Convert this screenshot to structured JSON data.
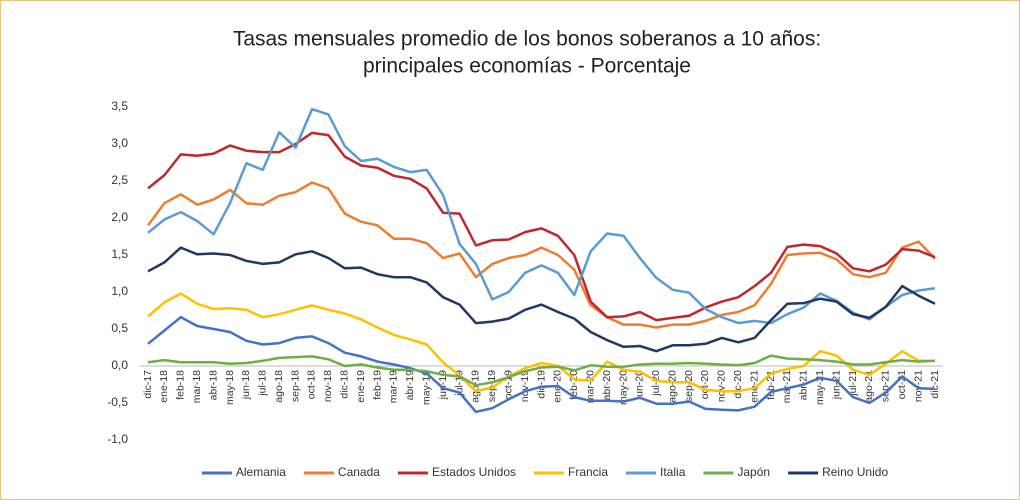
{
  "chart_data": {
    "type": "line",
    "title": [
      "Tasas mensuales promedio de los bonos soberanos a 10 años:",
      "principales economías - Porcentaje"
    ],
    "categories": [
      "dic-17",
      "ene-18",
      "feb-18",
      "mar-18",
      "abr-18",
      "may-18",
      "jun-18",
      "jul-18",
      "ago-18",
      "sep-18",
      "oct-18",
      "nov-18",
      "dic-18",
      "ene-19",
      "feb-19",
      "mar-19",
      "abr-19",
      "may-19",
      "jun-19",
      "jul-19",
      "ago-19",
      "sep-19",
      "oct-19",
      "nov-19",
      "dic-19",
      "ene-20",
      "feb-20",
      "mar-20",
      "abr-20",
      "may-20",
      "jun-20",
      "jul-20",
      "ago-20",
      "sep-20",
      "oct-20",
      "nov-20",
      "dic-20",
      "ene-21",
      "feb-21",
      "mar-21",
      "abr-21",
      "may-21",
      "jun-21",
      "jul-21",
      "ago-21",
      "sep-21",
      "oct-21",
      "nov-21",
      "dic-21"
    ],
    "series": [
      {
        "name": "Alemania",
        "color": "#4472c4",
        "values": [
          0.3,
          0.48,
          0.66,
          0.54,
          0.5,
          0.46,
          0.34,
          0.29,
          0.31,
          0.38,
          0.4,
          0.31,
          0.18,
          0.13,
          0.06,
          0.02,
          -0.03,
          -0.1,
          -0.3,
          -0.36,
          -0.62,
          -0.57,
          -0.45,
          -0.34,
          -0.28,
          -0.27,
          -0.42,
          -0.47,
          -0.47,
          -0.48,
          -0.43,
          -0.51,
          -0.51,
          -0.48,
          -0.58,
          -0.59,
          -0.6,
          -0.55,
          -0.35,
          -0.3,
          -0.25,
          -0.16,
          -0.2,
          -0.42,
          -0.5,
          -0.36,
          -0.14,
          -0.3,
          -0.31
        ]
      },
      {
        "name": "Canada",
        "color": "#ed7d31",
        "values": [
          1.9,
          2.2,
          2.32,
          2.18,
          2.25,
          2.38,
          2.2,
          2.18,
          2.3,
          2.35,
          2.48,
          2.4,
          2.06,
          1.95,
          1.9,
          1.72,
          1.72,
          1.66,
          1.46,
          1.52,
          1.2,
          1.38,
          1.46,
          1.5,
          1.6,
          1.5,
          1.3,
          0.82,
          0.66,
          0.56,
          0.56,
          0.52,
          0.56,
          0.56,
          0.61,
          0.69,
          0.73,
          0.82,
          1.11,
          1.5,
          1.52,
          1.53,
          1.44,
          1.24,
          1.2,
          1.26,
          1.6,
          1.68,
          1.45
        ]
      },
      {
        "name": "Estados Unidos",
        "color": "#c0272d",
        "values": [
          2.4,
          2.58,
          2.86,
          2.84,
          2.87,
          2.98,
          2.91,
          2.89,
          2.89,
          3.0,
          3.15,
          3.12,
          2.83,
          2.71,
          2.68,
          2.57,
          2.53,
          2.4,
          2.07,
          2.06,
          1.63,
          1.7,
          1.71,
          1.81,
          1.86,
          1.76,
          1.5,
          0.87,
          0.66,
          0.67,
          0.73,
          0.62,
          0.65,
          0.68,
          0.79,
          0.87,
          0.93,
          1.08,
          1.26,
          1.61,
          1.64,
          1.62,
          1.52,
          1.32,
          1.28,
          1.37,
          1.58,
          1.56,
          1.47
        ]
      },
      {
        "name": "Francia",
        "color": "#ffc000",
        "values": [
          0.67,
          0.86,
          0.98,
          0.84,
          0.77,
          0.78,
          0.76,
          0.66,
          0.7,
          0.76,
          0.82,
          0.76,
          0.71,
          0.63,
          0.52,
          0.42,
          0.36,
          0.29,
          0.05,
          -0.13,
          -0.34,
          -0.29,
          -0.14,
          -0.03,
          0.04,
          0.0,
          -0.18,
          -0.2,
          0.06,
          -0.05,
          -0.08,
          -0.2,
          -0.22,
          -0.22,
          -0.32,
          -0.34,
          -0.34,
          -0.3,
          -0.1,
          -0.04,
          0.0,
          0.2,
          0.14,
          -0.05,
          -0.12,
          0.03,
          0.2,
          0.07,
          0.07
        ]
      },
      {
        "name": "Italia",
        "color": "#5b9bd5",
        "values": [
          1.8,
          1.98,
          2.08,
          1.96,
          1.78,
          2.2,
          2.74,
          2.65,
          3.16,
          2.95,
          3.47,
          3.4,
          2.97,
          2.77,
          2.8,
          2.69,
          2.62,
          2.65,
          2.31,
          1.65,
          1.38,
          0.9,
          1.0,
          1.26,
          1.36,
          1.26,
          0.96,
          1.55,
          1.79,
          1.76,
          1.46,
          1.19,
          1.03,
          0.99,
          0.77,
          0.66,
          0.58,
          0.61,
          0.58,
          0.7,
          0.79,
          0.98,
          0.88,
          0.72,
          0.63,
          0.8,
          0.96,
          1.02,
          1.05
        ]
      },
      {
        "name": "Japón",
        "color": "#70ad47",
        "values": [
          0.05,
          0.08,
          0.05,
          0.05,
          0.05,
          0.03,
          0.04,
          0.07,
          0.11,
          0.12,
          0.13,
          0.09,
          0.0,
          0.02,
          -0.02,
          -0.05,
          -0.05,
          -0.07,
          -0.12,
          -0.14,
          -0.26,
          -0.22,
          -0.15,
          -0.07,
          -0.02,
          -0.01,
          -0.06,
          0.01,
          -0.01,
          -0.01,
          0.02,
          0.03,
          0.03,
          0.04,
          0.03,
          0.02,
          0.01,
          0.04,
          0.14,
          0.1,
          0.09,
          0.08,
          0.06,
          0.02,
          0.02,
          0.05,
          0.08,
          0.06,
          0.07
        ]
      },
      {
        "name": "Reino Unido",
        "color": "#203864",
        "values": [
          1.28,
          1.4,
          1.6,
          1.51,
          1.52,
          1.5,
          1.42,
          1.38,
          1.4,
          1.51,
          1.55,
          1.46,
          1.32,
          1.33,
          1.24,
          1.2,
          1.2,
          1.13,
          0.93,
          0.83,
          0.58,
          0.6,
          0.64,
          0.76,
          0.83,
          0.73,
          0.64,
          0.46,
          0.35,
          0.26,
          0.27,
          0.2,
          0.28,
          0.28,
          0.3,
          0.38,
          0.32,
          0.38,
          0.62,
          0.84,
          0.85,
          0.91,
          0.87,
          0.7,
          0.65,
          0.8,
          1.08,
          0.95,
          0.84
        ]
      }
    ],
    "ylim": [
      -1,
      3.5
    ],
    "yticks": [
      {
        "value": -1,
        "label": "-1,0"
      },
      {
        "value": -0.5,
        "label": "-0,5"
      },
      {
        "value": 0,
        "label": "0,0"
      },
      {
        "value": 0.5,
        "label": "0,5"
      },
      {
        "value": 1,
        "label": "1,0"
      },
      {
        "value": 1.5,
        "label": "1,5"
      },
      {
        "value": 2,
        "label": "2,0"
      },
      {
        "value": 2.5,
        "label": "2,5"
      },
      {
        "value": 3,
        "label": "3,0"
      },
      {
        "value": 3.5,
        "label": "3,5"
      }
    ],
    "grid": false,
    "legend": "bottom"
  }
}
